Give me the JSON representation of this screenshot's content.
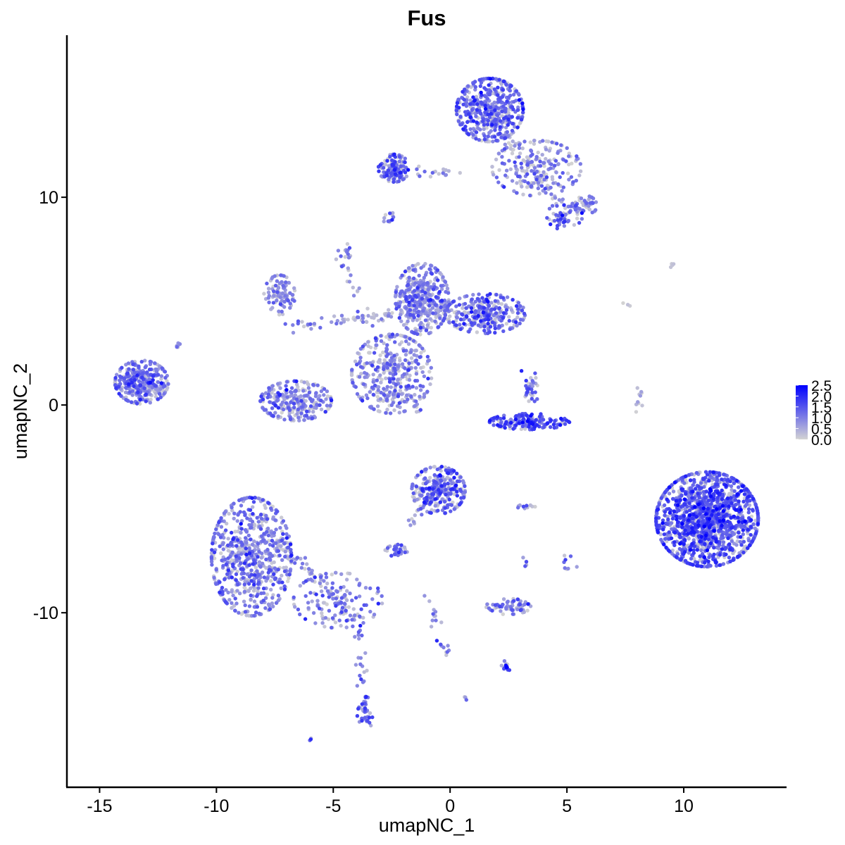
{
  "chart_data": {
    "type": "scatter",
    "title": "Fus",
    "xlabel": "umapNC_1",
    "ylabel": "umapNC_2",
    "xlim": [
      -16.4,
      14.4
    ],
    "ylim": [
      -18.4,
      17.8
    ],
    "xticks": [
      -15,
      -10,
      -5,
      0,
      5,
      10
    ],
    "xtick_labels": [
      "-15",
      "-10",
      "-5",
      "0",
      "5",
      "10"
    ],
    "yticks": [
      -10,
      0,
      10
    ],
    "ytick_labels": [
      "-10",
      "0",
      "10"
    ],
    "grid": false,
    "legend": {
      "position": "right",
      "labels": [
        "2.5",
        "2.0",
        "1.5",
        "1.0",
        "0.5",
        "0.0"
      ],
      "values": [
        2.5,
        2.0,
        1.5,
        1.0,
        0.5,
        0.0
      ]
    },
    "color_scale": {
      "low": "#d3d3d3",
      "high": "#0000ff",
      "min": 0,
      "max": 2.5
    },
    "clusters": [
      {
        "cx": 11.0,
        "cy": -5.5,
        "sx": 1.15,
        "sy": 1.2,
        "n": 1400,
        "mean_expr": 1.4
      },
      {
        "cx": -8.5,
        "cy": -7.3,
        "sx": 0.9,
        "sy": 1.5,
        "n": 650,
        "mean_expr": 1.0
      },
      {
        "cx": -2.5,
        "cy": 1.5,
        "sx": 0.9,
        "sy": 1.0,
        "n": 380,
        "mean_expr": 0.9
      },
      {
        "cx": -1.2,
        "cy": 5.1,
        "sx": 0.6,
        "sy": 0.9,
        "n": 380,
        "mean_expr": 0.9
      },
      {
        "cx": 1.5,
        "cy": 4.4,
        "sx": 0.9,
        "sy": 0.5,
        "n": 280,
        "mean_expr": 1.2
      },
      {
        "cx": 1.7,
        "cy": 14.2,
        "sx": 0.75,
        "sy": 0.8,
        "n": 480,
        "mean_expr": 1.2
      },
      {
        "cx": 3.7,
        "cy": 11.4,
        "sx": 1.0,
        "sy": 0.7,
        "n": 200,
        "mean_expr": 0.9
      },
      {
        "cx": -2.4,
        "cy": 11.4,
        "sx": 0.35,
        "sy": 0.35,
        "n": 130,
        "mean_expr": 1.3
      },
      {
        "cx": -13.2,
        "cy": 1.1,
        "sx": 0.6,
        "sy": 0.55,
        "n": 330,
        "mean_expr": 1.1
      },
      {
        "cx": -0.5,
        "cy": -4.1,
        "sx": 0.6,
        "sy": 0.6,
        "n": 260,
        "mean_expr": 1.2
      },
      {
        "cx": 3.4,
        "cy": -0.8,
        "sx": 0.9,
        "sy": 0.2,
        "n": 170,
        "mean_expr": 1.5
      },
      {
        "cx": -6.6,
        "cy": 0.2,
        "sx": 0.8,
        "sy": 0.5,
        "n": 260,
        "mean_expr": 1.0
      },
      {
        "cx": -7.3,
        "cy": 5.3,
        "sx": 0.35,
        "sy": 0.5,
        "n": 90,
        "mean_expr": 0.7
      },
      {
        "cx": 2.5,
        "cy": -9.7,
        "sx": 0.5,
        "sy": 0.2,
        "n": 70,
        "mean_expr": 1.0
      },
      {
        "cx": 4.9,
        "cy": 9.1,
        "sx": 0.4,
        "sy": 0.35,
        "n": 60,
        "mean_expr": 1.2
      },
      {
        "cx": 5.8,
        "cy": 9.6,
        "sx": 0.25,
        "sy": 0.25,
        "n": 40,
        "mean_expr": 0.8
      },
      {
        "cx": -2.3,
        "cy": -7.0,
        "sx": 0.25,
        "sy": 0.15,
        "n": 35,
        "mean_expr": 1.2
      },
      {
        "cx": -4.8,
        "cy": -9.4,
        "sx": 1.0,
        "sy": 0.7,
        "n": 130,
        "mean_expr": 1.0
      },
      {
        "cx": -3.6,
        "cy": -14.8,
        "sx": 0.2,
        "sy": 0.4,
        "n": 30,
        "mean_expr": 1.2
      },
      {
        "cx": 2.4,
        "cy": -12.6,
        "sx": 0.15,
        "sy": 0.15,
        "n": 15,
        "mean_expr": 1.8
      },
      {
        "cx": -2.6,
        "cy": 9.0,
        "sx": 0.15,
        "sy": 0.15,
        "n": 12,
        "mean_expr": 1.2
      },
      {
        "cx": -4.5,
        "cy": 7.4,
        "sx": 0.15,
        "sy": 0.2,
        "n": 12,
        "mean_expr": 1.0
      },
      {
        "cx": -11.7,
        "cy": 2.8,
        "sx": 0.1,
        "sy": 0.1,
        "n": 6,
        "mean_expr": 1.0
      },
      {
        "cx": 3.5,
        "cy": 0.9,
        "sx": 0.2,
        "sy": 0.4,
        "n": 20,
        "mean_expr": 1.3
      },
      {
        "cx": 9.5,
        "cy": 6.7,
        "sx": 0.1,
        "sy": 0.05,
        "n": 4,
        "mean_expr": 1.0
      },
      {
        "cx": 0.7,
        "cy": -14.1,
        "sx": 0.05,
        "sy": 0.05,
        "n": 3,
        "mean_expr": 1.0
      },
      {
        "cx": -6.0,
        "cy": -16.1,
        "sx": 0.05,
        "sy": 0.05,
        "n": 3,
        "mean_expr": 1.0
      },
      {
        "cx": 3.1,
        "cy": -4.9,
        "sx": 0.3,
        "sy": 0.05,
        "n": 10,
        "mean_expr": 1.1
      }
    ],
    "trails": [
      {
        "from": [
          0.3,
          11.2
        ],
        "to": [
          -1.6,
          11.1
        ],
        "n": 18,
        "mean_expr": 1.0
      },
      {
        "from": [
          2.3,
          13.0
        ],
        "to": [
          4.8,
          9.5
        ],
        "n": 35,
        "mean_expr": 0.6
      },
      {
        "from": [
          -7.0,
          3.8
        ],
        "to": [
          -2.5,
          4.3
        ],
        "n": 40,
        "mean_expr": 0.7
      },
      {
        "from": [
          -4.8,
          4.1
        ],
        "to": [
          -0.5,
          4.5
        ],
        "n": 30,
        "mean_expr": 0.8
      },
      {
        "from": [
          -4.7,
          7.3
        ],
        "to": [
          -3.1,
          2.8
        ],
        "n": 22,
        "mean_expr": 0.7
      },
      {
        "from": [
          -1.2,
          1.0
        ],
        "to": [
          -1.5,
          -0.3
        ],
        "n": 10,
        "mean_expr": 0.8
      },
      {
        "from": [
          -7.9,
          -6.0
        ],
        "to": [
          -3.9,
          -10.3
        ],
        "n": 70,
        "mean_expr": 0.9
      },
      {
        "from": [
          -3.9,
          -10.5
        ],
        "to": [
          -3.6,
          -15.0
        ],
        "n": 30,
        "mean_expr": 1.0
      },
      {
        "from": [
          -1.1,
          -4.5
        ],
        "to": [
          -1.8,
          -6.0
        ],
        "n": 14,
        "mean_expr": 1.1
      },
      {
        "from": [
          -0.9,
          -9.3
        ],
        "to": [
          -0.2,
          -12.0
        ],
        "n": 20,
        "mean_expr": 1.2
      },
      {
        "from": [
          7.5,
          4.9
        ],
        "to": [
          7.8,
          4.5
        ],
        "n": 3,
        "mean_expr": 0.2
      },
      {
        "from": [
          8.2,
          0.8
        ],
        "to": [
          7.9,
          -0.5
        ],
        "n": 10,
        "mean_expr": 0.2
      },
      {
        "from": [
          3.2,
          1.6
        ],
        "to": [
          3.5,
          0.3
        ],
        "n": 10,
        "mean_expr": 1.1
      },
      {
        "from": [
          5.0,
          -7.0
        ],
        "to": [
          5.1,
          -7.8
        ],
        "n": 8,
        "mean_expr": 1.2
      },
      {
        "from": [
          3.2,
          -7.4
        ],
        "to": [
          3.3,
          -7.7
        ],
        "n": 4,
        "mean_expr": 0.8
      }
    ]
  }
}
